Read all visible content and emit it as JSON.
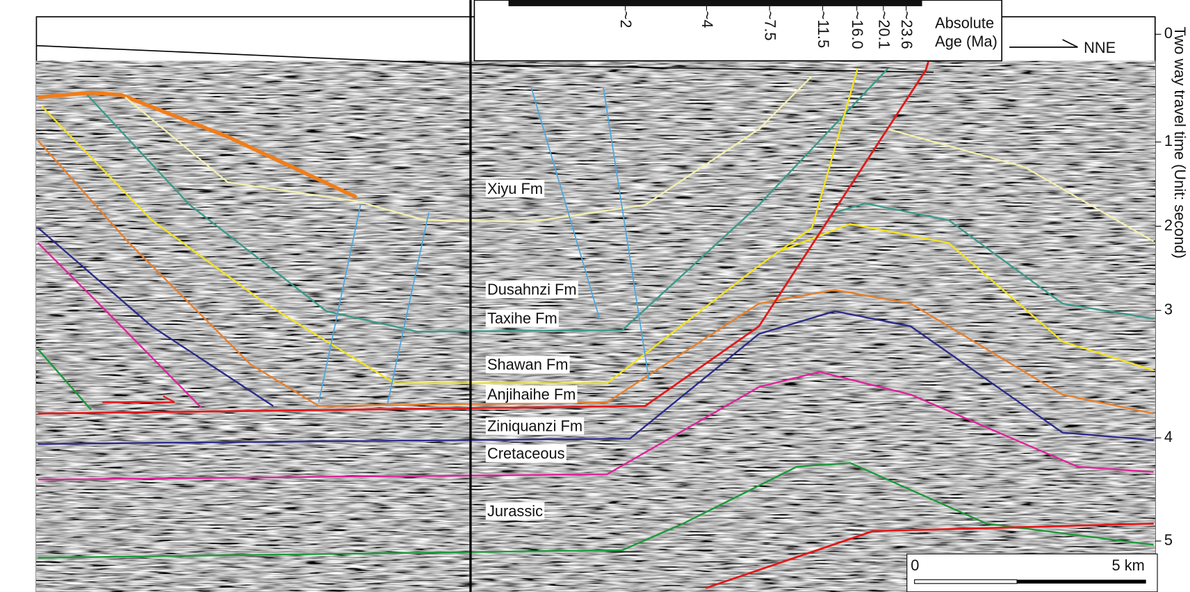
{
  "section": {
    "direction": "NNE",
    "formations": [
      "Xiyu Fm",
      "Dusahnzi Fm",
      "Taxihe Fm",
      "Shawan Fm",
      "Anjihaihe Fm",
      "Ziniquanzi Fm",
      "Cretaceous",
      "Jurassic"
    ],
    "age_legend": {
      "title_lines": [
        "Absolute",
        "Age (Ma)"
      ],
      "ages": [
        "~2",
        "~4",
        "~7.5",
        "~11.5",
        "~16.0",
        "~20.1",
        "~23.6"
      ]
    },
    "time_axis": {
      "title": "Two way travel time (Unit: second)",
      "ticks": [
        "0",
        "1",
        "2",
        "3",
        "4",
        "5"
      ]
    },
    "scale_bar": {
      "start": "0",
      "end": "5 km"
    }
  }
}
